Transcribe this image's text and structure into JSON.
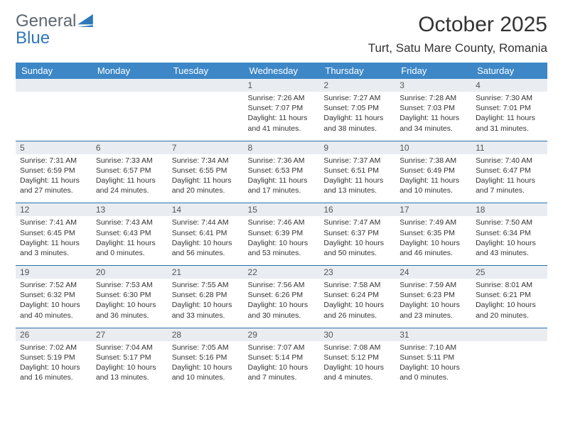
{
  "brand": {
    "word1": "General",
    "word2": "Blue"
  },
  "title": "October 2025",
  "location": "Turt, Satu Mare County, Romania",
  "colors": {
    "header_bg": "#3d87c7",
    "header_text": "#ffffff",
    "strip_bg": "#e9edf1",
    "rule": "#2f6fa8",
    "brand_gray": "#5d6770",
    "brand_blue": "#2f76bb",
    "body_text": "#333333"
  },
  "weekdays": [
    "Sunday",
    "Monday",
    "Tuesday",
    "Wednesday",
    "Thursday",
    "Friday",
    "Saturday"
  ],
  "weeks": [
    [
      null,
      null,
      null,
      {
        "n": "1",
        "sr": "7:26 AM",
        "ss": "7:07 PM",
        "dl": "11 hours and 41 minutes."
      },
      {
        "n": "2",
        "sr": "7:27 AM",
        "ss": "7:05 PM",
        "dl": "11 hours and 38 minutes."
      },
      {
        "n": "3",
        "sr": "7:28 AM",
        "ss": "7:03 PM",
        "dl": "11 hours and 34 minutes."
      },
      {
        "n": "4",
        "sr": "7:30 AM",
        "ss": "7:01 PM",
        "dl": "11 hours and 31 minutes."
      }
    ],
    [
      {
        "n": "5",
        "sr": "7:31 AM",
        "ss": "6:59 PM",
        "dl": "11 hours and 27 minutes."
      },
      {
        "n": "6",
        "sr": "7:33 AM",
        "ss": "6:57 PM",
        "dl": "11 hours and 24 minutes."
      },
      {
        "n": "7",
        "sr": "7:34 AM",
        "ss": "6:55 PM",
        "dl": "11 hours and 20 minutes."
      },
      {
        "n": "8",
        "sr": "7:36 AM",
        "ss": "6:53 PM",
        "dl": "11 hours and 17 minutes."
      },
      {
        "n": "9",
        "sr": "7:37 AM",
        "ss": "6:51 PM",
        "dl": "11 hours and 13 minutes."
      },
      {
        "n": "10",
        "sr": "7:38 AM",
        "ss": "6:49 PM",
        "dl": "11 hours and 10 minutes."
      },
      {
        "n": "11",
        "sr": "7:40 AM",
        "ss": "6:47 PM",
        "dl": "11 hours and 7 minutes."
      }
    ],
    [
      {
        "n": "12",
        "sr": "7:41 AM",
        "ss": "6:45 PM",
        "dl": "11 hours and 3 minutes."
      },
      {
        "n": "13",
        "sr": "7:43 AM",
        "ss": "6:43 PM",
        "dl": "11 hours and 0 minutes."
      },
      {
        "n": "14",
        "sr": "7:44 AM",
        "ss": "6:41 PM",
        "dl": "10 hours and 56 minutes."
      },
      {
        "n": "15",
        "sr": "7:46 AM",
        "ss": "6:39 PM",
        "dl": "10 hours and 53 minutes."
      },
      {
        "n": "16",
        "sr": "7:47 AM",
        "ss": "6:37 PM",
        "dl": "10 hours and 50 minutes."
      },
      {
        "n": "17",
        "sr": "7:49 AM",
        "ss": "6:35 PM",
        "dl": "10 hours and 46 minutes."
      },
      {
        "n": "18",
        "sr": "7:50 AM",
        "ss": "6:34 PM",
        "dl": "10 hours and 43 minutes."
      }
    ],
    [
      {
        "n": "19",
        "sr": "7:52 AM",
        "ss": "6:32 PM",
        "dl": "10 hours and 40 minutes."
      },
      {
        "n": "20",
        "sr": "7:53 AM",
        "ss": "6:30 PM",
        "dl": "10 hours and 36 minutes."
      },
      {
        "n": "21",
        "sr": "7:55 AM",
        "ss": "6:28 PM",
        "dl": "10 hours and 33 minutes."
      },
      {
        "n": "22",
        "sr": "7:56 AM",
        "ss": "6:26 PM",
        "dl": "10 hours and 30 minutes."
      },
      {
        "n": "23",
        "sr": "7:58 AM",
        "ss": "6:24 PM",
        "dl": "10 hours and 26 minutes."
      },
      {
        "n": "24",
        "sr": "7:59 AM",
        "ss": "6:23 PM",
        "dl": "10 hours and 23 minutes."
      },
      {
        "n": "25",
        "sr": "8:01 AM",
        "ss": "6:21 PM",
        "dl": "10 hours and 20 minutes."
      }
    ],
    [
      {
        "n": "26",
        "sr": "7:02 AM",
        "ss": "5:19 PM",
        "dl": "10 hours and 16 minutes."
      },
      {
        "n": "27",
        "sr": "7:04 AM",
        "ss": "5:17 PM",
        "dl": "10 hours and 13 minutes."
      },
      {
        "n": "28",
        "sr": "7:05 AM",
        "ss": "5:16 PM",
        "dl": "10 hours and 10 minutes."
      },
      {
        "n": "29",
        "sr": "7:07 AM",
        "ss": "5:14 PM",
        "dl": "10 hours and 7 minutes."
      },
      {
        "n": "30",
        "sr": "7:08 AM",
        "ss": "5:12 PM",
        "dl": "10 hours and 4 minutes."
      },
      {
        "n": "31",
        "sr": "7:10 AM",
        "ss": "5:11 PM",
        "dl": "10 hours and 0 minutes."
      },
      null
    ]
  ],
  "labels": {
    "sunrise": "Sunrise:",
    "sunset": "Sunset:",
    "daylight": "Daylight:"
  }
}
